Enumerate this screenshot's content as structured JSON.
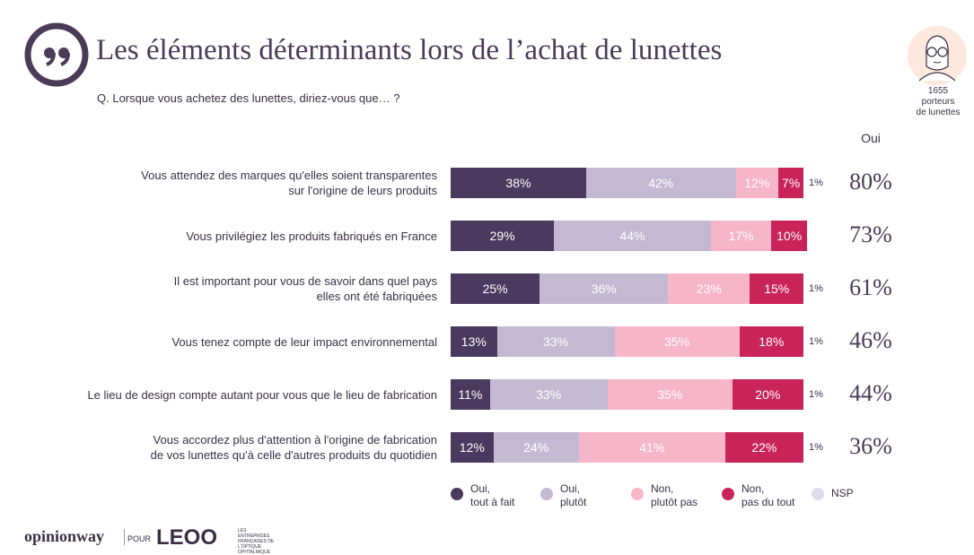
{
  "title": "Les éléments déterminants lors de l’achat de lunettes",
  "question": "Q. Lorsque vous achetez des lunettes, diriez-vous que… ?",
  "sample": {
    "count": "1655",
    "line1": "porteurs",
    "line2": "de lunettes"
  },
  "oui_header": "Oui",
  "colors": {
    "tout_a_fait": "#4b3a60",
    "plutot": "#c4b9d3",
    "plutot_pas": "#f7b6c8",
    "pas_du_tout": "#c9245a",
    "nsp": "#dcdde8"
  },
  "chart_data": {
    "type": "bar",
    "orientation": "horizontal-stacked",
    "title": "Les éléments déterminants lors de l’achat de lunettes",
    "categories": [
      "Vous attendez des marques qu'elles soient transparentes sur l'origine de leurs produits",
      "Vous privilégiez les produits fabriqués en France",
      "Il est important pour vous de savoir dans quel pays elles ont été fabriquées",
      "Vous tenez compte de leur impact environnemental",
      "Le lieu de design compte autant pour vous que le lieu de fabrication",
      "Vous accordez plus d'attention à l'origine de fabrication de vos lunettes qu'à celle d'autres produits du quotidien"
    ],
    "rows": [
      {
        "label_lines": [
          "Vous attendez des marques qu'elles soient transparentes",
          "sur l'origine de leurs produits"
        ],
        "values": [
          38,
          42,
          12,
          7,
          1
        ],
        "nsp_label": "1%",
        "oui": "80%"
      },
      {
        "label_lines": [
          "Vous privilégiez les produits fabriqués en France"
        ],
        "values": [
          29,
          44,
          17,
          10,
          0
        ],
        "nsp_label": "",
        "oui": "73%"
      },
      {
        "label_lines": [
          "Il est important pour vous de savoir dans quel pays",
          "elles ont été fabriquées"
        ],
        "values": [
          25,
          36,
          23,
          15,
          1
        ],
        "nsp_label": "1%",
        "oui": "61%"
      },
      {
        "label_lines": [
          "Vous tenez compte de leur impact environnemental"
        ],
        "values": [
          13,
          33,
          35,
          18,
          1
        ],
        "nsp_label": "1%",
        "oui": "46%"
      },
      {
        "label_lines": [
          "Le lieu de design compte autant pour vous que le lieu de fabrication"
        ],
        "values": [
          11,
          33,
          35,
          20,
          1
        ],
        "nsp_label": "1%",
        "oui": "44%"
      },
      {
        "label_lines": [
          "Vous accordez plus d'attention à l'origine de fabrication",
          "de vos lunettes qu'à celle d'autres produits du quotidien"
        ],
        "values": [
          12,
          24,
          41,
          22,
          1
        ],
        "nsp_label": "1%",
        "oui": "36%"
      }
    ],
    "series": [
      {
        "name": "Oui, tout à fait",
        "key": "tout_a_fait"
      },
      {
        "name": "Oui, plutôt",
        "key": "plutot"
      },
      {
        "name": "Non, plutôt pas",
        "key": "plutot_pas"
      },
      {
        "name": "Non, pas du tout",
        "key": "pas_du_tout"
      },
      {
        "name": "NSP",
        "key": "nsp"
      }
    ],
    "xlim": [
      0,
      100
    ]
  },
  "legend": [
    {
      "line1": "Oui,",
      "line2": "tout à fait"
    },
    {
      "line1": "Oui,",
      "line2": "plutôt"
    },
    {
      "line1": "Non,",
      "line2": "plutôt pas"
    },
    {
      "line1": "Non,",
      "line2": "pas du tout"
    },
    {
      "line1": "NSP",
      "line2": ""
    }
  ],
  "footer": {
    "brand": "opinionway",
    "pour": "POUR",
    "partner": "LEOO",
    "partner_sub": "LES ENTREPRISES FRANÇAISES DE L'OPTIQUE OPHTALMIQUE"
  }
}
